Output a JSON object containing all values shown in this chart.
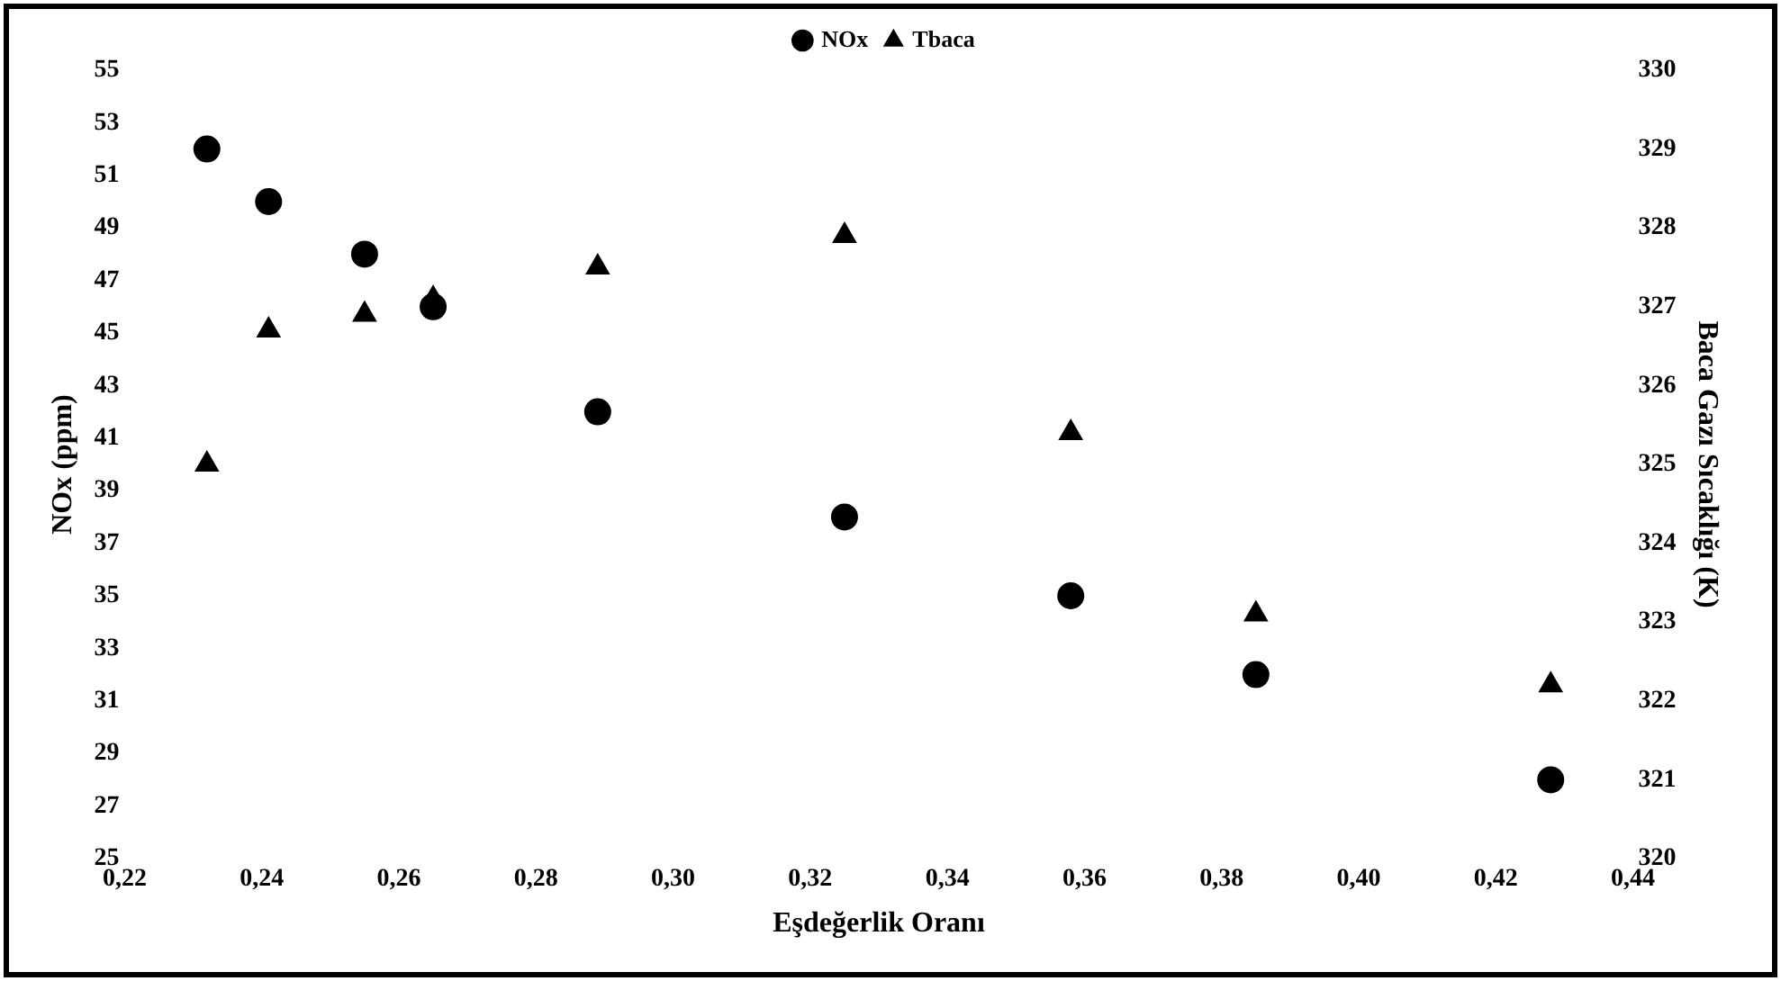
{
  "chart_data": {
    "type": "scatter",
    "xlabel": "Eşdeğerlik Oranı",
    "ylabel": "NOx (ppm)",
    "y2label": "Baca Gazı Sıcaklığı (K)",
    "xlim": [
      0.22,
      0.44
    ],
    "xticks": [
      {
        "value": 0.22,
        "label": "0,22"
      },
      {
        "value": 0.24,
        "label": "0,24"
      },
      {
        "value": 0.26,
        "label": "0,26"
      },
      {
        "value": 0.28,
        "label": "0,28"
      },
      {
        "value": 0.3,
        "label": "0,30"
      },
      {
        "value": 0.32,
        "label": "0,32"
      },
      {
        "value": 0.34,
        "label": "0,34"
      },
      {
        "value": 0.36,
        "label": "0,36"
      },
      {
        "value": 0.38,
        "label": "0,38"
      },
      {
        "value": 0.4,
        "label": "0,40"
      },
      {
        "value": 0.42,
        "label": "0,42"
      },
      {
        "value": 0.44,
        "label": "0,44"
      }
    ],
    "ylim": [
      25,
      55
    ],
    "yticks": [
      25,
      27,
      29,
      31,
      33,
      35,
      37,
      39,
      41,
      43,
      45,
      47,
      49,
      51,
      53,
      55
    ],
    "y2lim": [
      320,
      330
    ],
    "y2ticks": [
      320,
      321,
      322,
      323,
      324,
      325,
      326,
      327,
      328,
      329,
      330
    ],
    "x": [
      0.232,
      0.241,
      0.255,
      0.265,
      0.289,
      0.325,
      0.358,
      0.385,
      0.428
    ],
    "series": [
      {
        "name": "NOx",
        "color": "#000000",
        "marker": "circle",
        "values": [
          52,
          50,
          48,
          46,
          42,
          38,
          35,
          32,
          28
        ]
      },
      {
        "name": "Tbaca",
        "color": "#000000",
        "marker": "triangle",
        "axis": "y2",
        "values": [
          325.0,
          326.7,
          326.9,
          327.1,
          327.5,
          327.9,
          325.4,
          323.1,
          322.2
        ]
      }
    ],
    "grid": false,
    "legend": "top"
  }
}
